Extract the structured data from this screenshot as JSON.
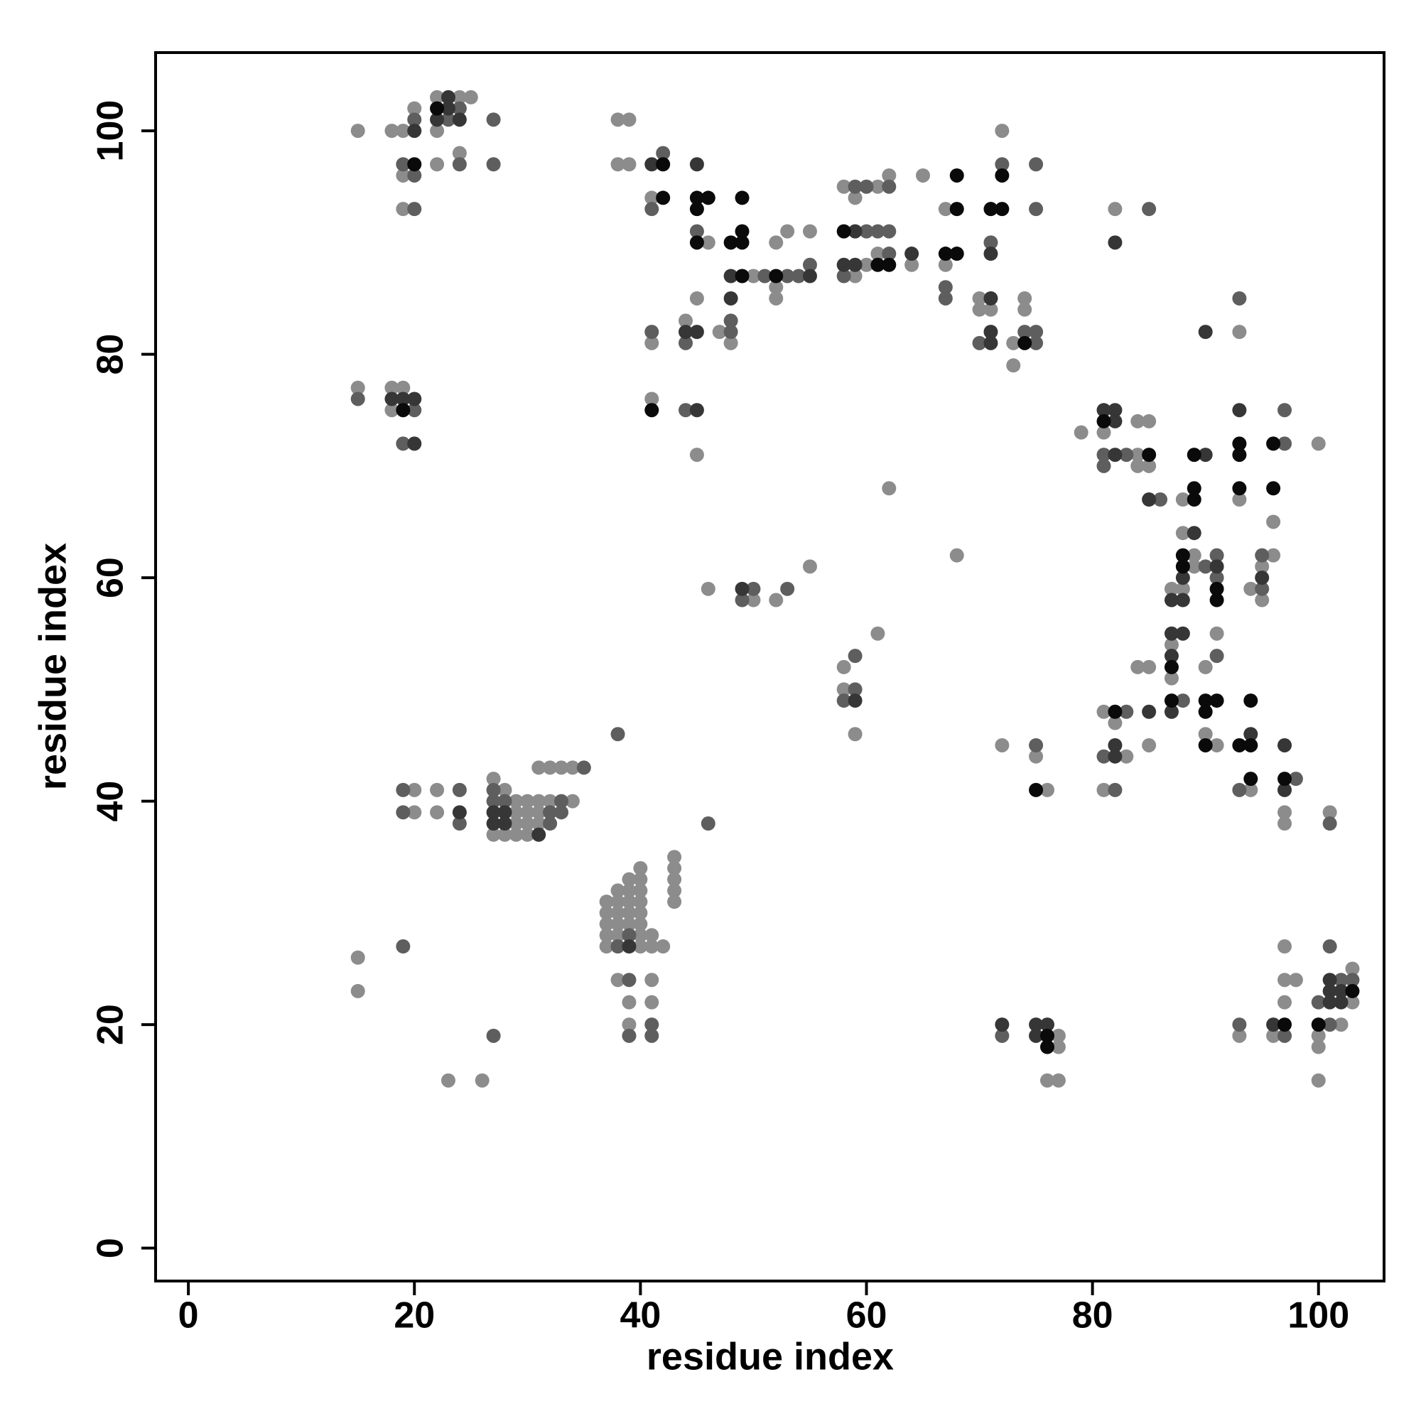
{
  "chart_data": {
    "type": "scatter",
    "xlabel": "residue index",
    "ylabel": "residue index",
    "xlim": [
      -2.9,
      105.8
    ],
    "ylim": [
      -2.95,
      107
    ],
    "xticks": [
      0,
      20,
      40,
      60,
      80,
      100
    ],
    "yticks": [
      0,
      20,
      40,
      60,
      80,
      100
    ],
    "series": [
      {
        "color": "#8c8c8c",
        "x": [
          15,
          18,
          19,
          20,
          19,
          19,
          22,
          22,
          24,
          25,
          22,
          24,
          15,
          18,
          18,
          19,
          20,
          20,
          22,
          22,
          27,
          28,
          29,
          27,
          28,
          29,
          30,
          29,
          30,
          31,
          29,
          30,
          31,
          32,
          34,
          30,
          31,
          31,
          32,
          33,
          34,
          37,
          37,
          37,
          37,
          37,
          38,
          38,
          38,
          38,
          38,
          39,
          39,
          39,
          39,
          39,
          40,
          40,
          40,
          40,
          40,
          40,
          40,
          40,
          41,
          41,
          42,
          43,
          43,
          43,
          43,
          43,
          38,
          41,
          39,
          41,
          39,
          15,
          15,
          23,
          26,
          38,
          39,
          38,
          39,
          41,
          46,
          45,
          48,
          47,
          44,
          41,
          41,
          45,
          50,
          52,
          52,
          52,
          53,
          55,
          58,
          59,
          61,
          62,
          60,
          61,
          59,
          64,
          65,
          67,
          67,
          70,
          70,
          71,
          72,
          73,
          73,
          74,
          74,
          46,
          50,
          52,
          55,
          61,
          58,
          58,
          59,
          62,
          68,
          72,
          75,
          76,
          77,
          77,
          76,
          77,
          93,
          96,
          97,
          97,
          98,
          97,
          100,
          100,
          100,
          102,
          103,
          103,
          79,
          81,
          84,
          85,
          84,
          84,
          85,
          82,
          93,
          88,
          88,
          93,
          96,
          96,
          100,
          88,
          87,
          89,
          89,
          94,
          95,
          95,
          87,
          84,
          85,
          87,
          91,
          90,
          81,
          82,
          83,
          81,
          85,
          90,
          91,
          94,
          97,
          97,
          101
        ],
        "y": [
          100,
          100,
          100,
          102,
          96,
          93,
          100,
          103,
          103,
          103,
          97,
          98,
          77,
          77,
          75,
          77,
          41,
          39,
          41,
          39,
          42,
          41,
          39,
          37,
          37,
          37,
          37,
          38,
          38,
          38,
          40,
          40,
          40,
          40,
          40,
          39,
          39,
          43,
          43,
          43,
          43,
          27,
          28,
          29,
          30,
          31,
          28,
          29,
          30,
          31,
          32,
          29,
          30,
          31,
          32,
          33,
          27,
          28,
          29,
          30,
          31,
          32,
          33,
          34,
          27,
          28,
          27,
          31,
          32,
          33,
          34,
          35,
          24,
          24,
          22,
          22,
          20,
          26,
          23,
          15,
          15,
          101,
          101,
          97,
          97,
          94,
          90,
          85,
          81,
          82,
          83,
          81,
          76,
          71,
          87,
          86,
          85,
          90,
          91,
          91,
          95,
          94,
          95,
          96,
          88,
          89,
          87,
          88,
          96,
          93,
          88,
          85,
          84,
          84,
          100,
          81,
          79,
          85,
          84,
          59,
          58,
          58,
          61,
          55,
          52,
          50,
          46,
          68,
          62,
          45,
          44,
          41,
          19,
          18,
          15,
          15,
          19,
          19,
          27,
          24,
          24,
          22,
          19,
          18,
          15,
          20,
          25,
          22,
          73,
          73,
          74,
          74,
          71,
          70,
          70,
          93,
          82,
          67,
          64,
          67,
          65,
          62,
          72,
          59,
          59,
          62,
          61,
          59,
          61,
          58,
          54,
          52,
          52,
          51,
          55,
          52,
          48,
          47,
          44,
          41,
          45,
          46,
          45,
          41,
          39,
          38,
          39
        ]
      },
      {
        "color": "#5e5e5e",
        "x": [
          20,
          19,
          20,
          20,
          23,
          24,
          24,
          27,
          27,
          15,
          20,
          19,
          19,
          19,
          24,
          24,
          27,
          27,
          28,
          32,
          33,
          32,
          33,
          35,
          38,
          46,
          38,
          39,
          39,
          41,
          39,
          41,
          19,
          27,
          42,
          41,
          45,
          48,
          48,
          44,
          41,
          44,
          51,
          53,
          54,
          55,
          59,
          60,
          62,
          60,
          61,
          62,
          62,
          58,
          67,
          67,
          71,
          72,
          70,
          74,
          75,
          75,
          75,
          75,
          50,
          49,
          53,
          59,
          59,
          58,
          75,
          72,
          93,
          97,
          100,
          101,
          101,
          102,
          103,
          81,
          81,
          83,
          86,
          85,
          93,
          97,
          97,
          91,
          91,
          90,
          95,
          95,
          91,
          81,
          82,
          83,
          88,
          93,
          98,
          101
        ],
        "y": [
          101,
          97,
          96,
          93,
          101,
          102,
          97,
          101,
          97,
          76,
          75,
          72,
          41,
          39,
          41,
          38,
          41,
          40,
          40,
          38,
          40,
          39,
          39,
          43,
          46,
          38,
          27,
          28,
          24,
          20,
          19,
          19,
          27,
          19,
          98,
          93,
          91,
          83,
          82,
          81,
          82,
          75,
          87,
          87,
          87,
          88,
          95,
          95,
          95,
          91,
          91,
          91,
          89,
          87,
          86,
          85,
          90,
          97,
          81,
          82,
          82,
          81,
          93,
          97,
          59,
          58,
          59,
          53,
          50,
          49,
          45,
          19,
          20,
          19,
          22,
          27,
          20,
          24,
          24,
          71,
          70,
          71,
          67,
          93,
          85,
          72,
          75,
          62,
          60,
          61,
          59,
          62,
          53,
          44,
          41,
          48,
          49,
          41,
          42,
          38
        ]
      },
      {
        "color": "#363636",
        "x": [
          20,
          22,
          23,
          23,
          24,
          18,
          19,
          20,
          20,
          24,
          27,
          28,
          27,
          28,
          31,
          39,
          41,
          45,
          48,
          48,
          44,
          45,
          45,
          55,
          59,
          58,
          59,
          64,
          71,
          71,
          71,
          71,
          49,
          59,
          72,
          75,
          76,
          75,
          96,
          101,
          101,
          101,
          102,
          102,
          81,
          82,
          82,
          82,
          85,
          82,
          90,
          89,
          90,
          93,
          88,
          88,
          87,
          91,
          95,
          87,
          88,
          87,
          87,
          82,
          82,
          85,
          94,
          97,
          97
        ],
        "y": [
          100,
          101,
          103,
          102,
          101,
          76,
          76,
          76,
          72,
          39,
          39,
          39,
          38,
          38,
          37,
          27,
          97,
          97,
          87,
          85,
          82,
          82,
          75,
          87,
          91,
          88,
          88,
          89,
          85,
          89,
          81,
          82,
          59,
          49,
          20,
          20,
          20,
          19,
          20,
          24,
          23,
          22,
          23,
          22,
          75,
          75,
          74,
          71,
          67,
          90,
          82,
          64,
          71,
          75,
          60,
          58,
          58,
          61,
          60,
          55,
          55,
          53,
          48,
          44,
          45,
          48,
          46,
          45,
          41
        ]
      },
      {
        "color": "#0a0a0a",
        "x": [
          20,
          22,
          19,
          42,
          42,
          45,
          46,
          45,
          45,
          48,
          49,
          49,
          49,
          49,
          41,
          52,
          58,
          61,
          62,
          68,
          68,
          67,
          68,
          71,
          72,
          72,
          74,
          75,
          76,
          76,
          97,
          100,
          103,
          81,
          85,
          89,
          89,
          89,
          93,
          93,
          93,
          96,
          96,
          88,
          88,
          91,
          91,
          87,
          87,
          82,
          90,
          91,
          90,
          90,
          93,
          94,
          94,
          94,
          97
        ],
        "y": [
          97,
          102,
          75,
          97,
          94,
          94,
          94,
          93,
          90,
          90,
          90,
          91,
          94,
          87,
          75,
          87,
          91,
          88,
          88,
          93,
          96,
          89,
          89,
          93,
          93,
          96,
          81,
          41,
          19,
          18,
          20,
          20,
          23,
          74,
          71,
          68,
          67,
          71,
          72,
          71,
          68,
          72,
          68,
          62,
          61,
          59,
          58,
          52,
          49,
          48,
          49,
          49,
          48,
          45,
          45,
          45,
          49,
          42,
          42
        ]
      }
    ]
  }
}
